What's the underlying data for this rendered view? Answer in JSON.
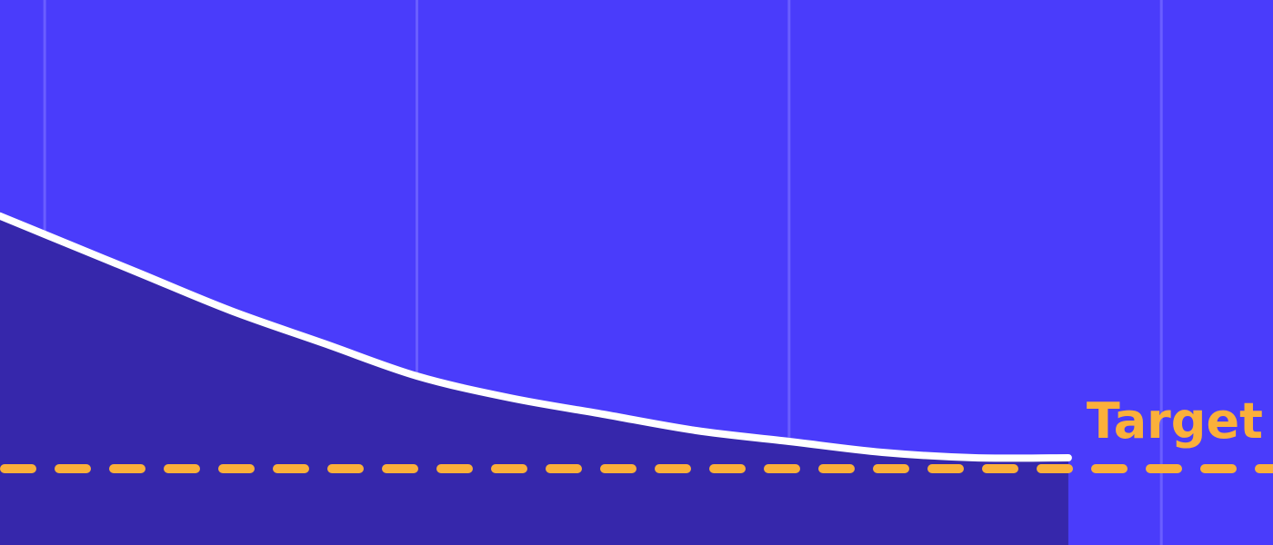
{
  "chart_data": {
    "type": "area",
    "title": "",
    "xlabel": "",
    "ylabel": "",
    "grid": true,
    "series": [
      {
        "values": [
          {
            "x": 0.0,
            "y": 0.57
          },
          {
            "x": 0.25,
            "y": 0.5
          },
          {
            "x": 0.5,
            "y": 0.43
          },
          {
            "x": 0.75,
            "y": 0.37
          },
          {
            "x": 1.0,
            "y": 0.31
          },
          {
            "x": 1.25,
            "y": 0.27
          },
          {
            "x": 1.5,
            "y": 0.24
          },
          {
            "x": 1.75,
            "y": 0.21
          },
          {
            "x": 2.0,
            "y": 0.19
          },
          {
            "x": 2.25,
            "y": 0.17
          },
          {
            "x": 2.5,
            "y": 0.16
          },
          {
            "x": 2.75,
            "y": 0.16
          }
        ]
      }
    ],
    "reference_line": {
      "label": "Target",
      "y": 0.14
    },
    "gridlines_x": [
      0,
      1,
      2,
      3
    ],
    "xlim": [
      -0.12,
      3.3
    ],
    "ylim": [
      0,
      1
    ],
    "colors": {
      "background": "#4a3cfb",
      "area_fill": "#3627ab",
      "line": "#ffffff",
      "target": "#fbb03b",
      "grid": "#6a5eff"
    }
  }
}
